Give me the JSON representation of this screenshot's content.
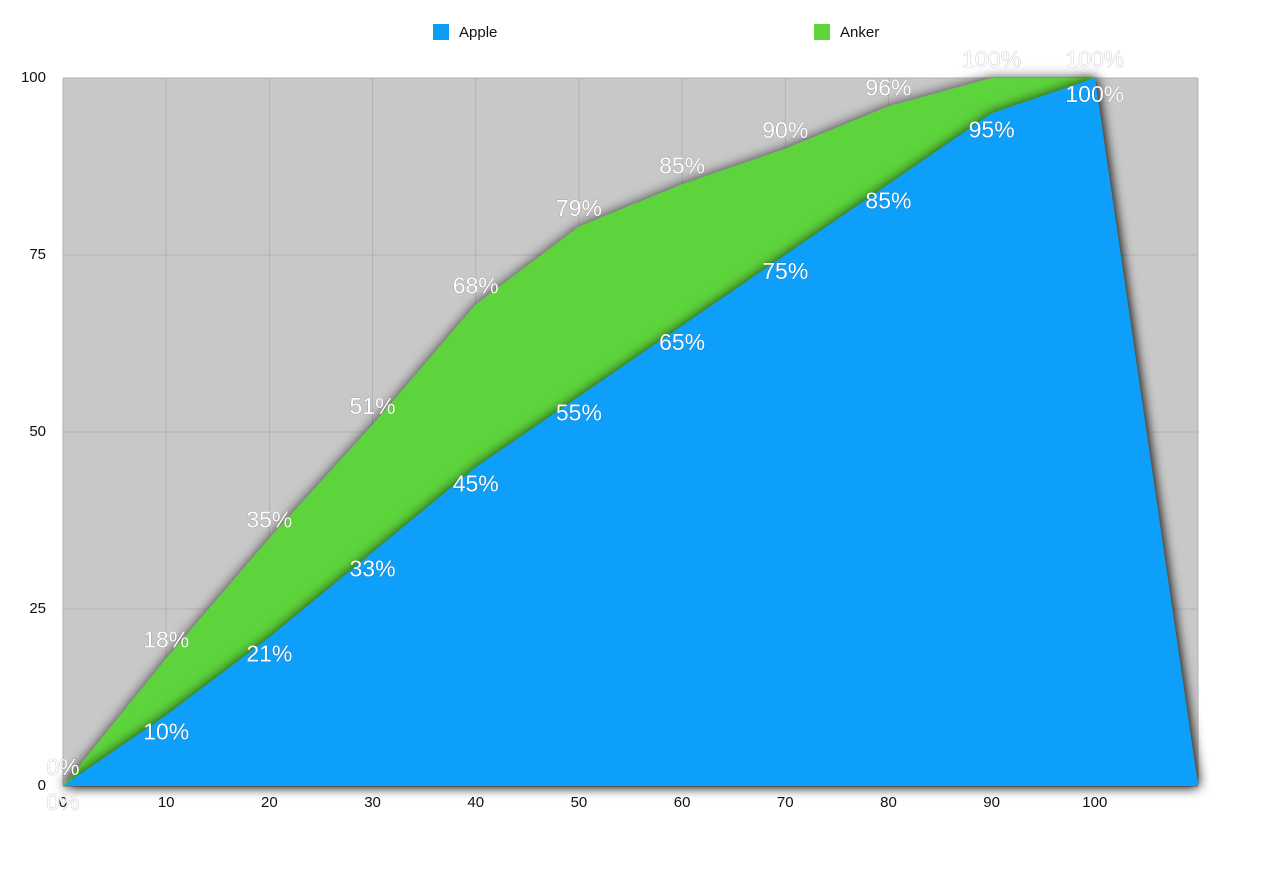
{
  "chart_data": {
    "type": "area",
    "categories": [
      "0",
      "10",
      "20",
      "30",
      "40",
      "50",
      "60",
      "70",
      "80",
      "90",
      "100",
      null
    ],
    "series": [
      {
        "name": "Anker",
        "color": "#5dd43b",
        "values": [
          0,
          18,
          35,
          51,
          68,
          79,
          85,
          90,
          96,
          100,
          100,
          0
        ],
        "value_labels": [
          "0%",
          "18%",
          "35%",
          "51%",
          "68%",
          "79%",
          "85%",
          "90%",
          "96%",
          "100%",
          "100%",
          null
        ]
      },
      {
        "name": "Apple",
        "color": "#099ff9",
        "values": [
          0,
          10,
          21,
          33,
          45,
          55,
          65,
          75,
          85,
          95,
          100,
          0
        ],
        "value_labels": [
          "0%",
          "10%",
          "21%",
          "33%",
          "45%",
          "55%",
          "65%",
          "75%",
          "85%",
          "95%",
          "100%",
          null
        ]
      }
    ],
    "legend_order": [
      "Apple",
      "Anker"
    ],
    "ylim": [
      0,
      100
    ],
    "yticks": [
      0,
      25,
      50,
      75,
      100
    ],
    "grid": true,
    "legend": "top"
  }
}
